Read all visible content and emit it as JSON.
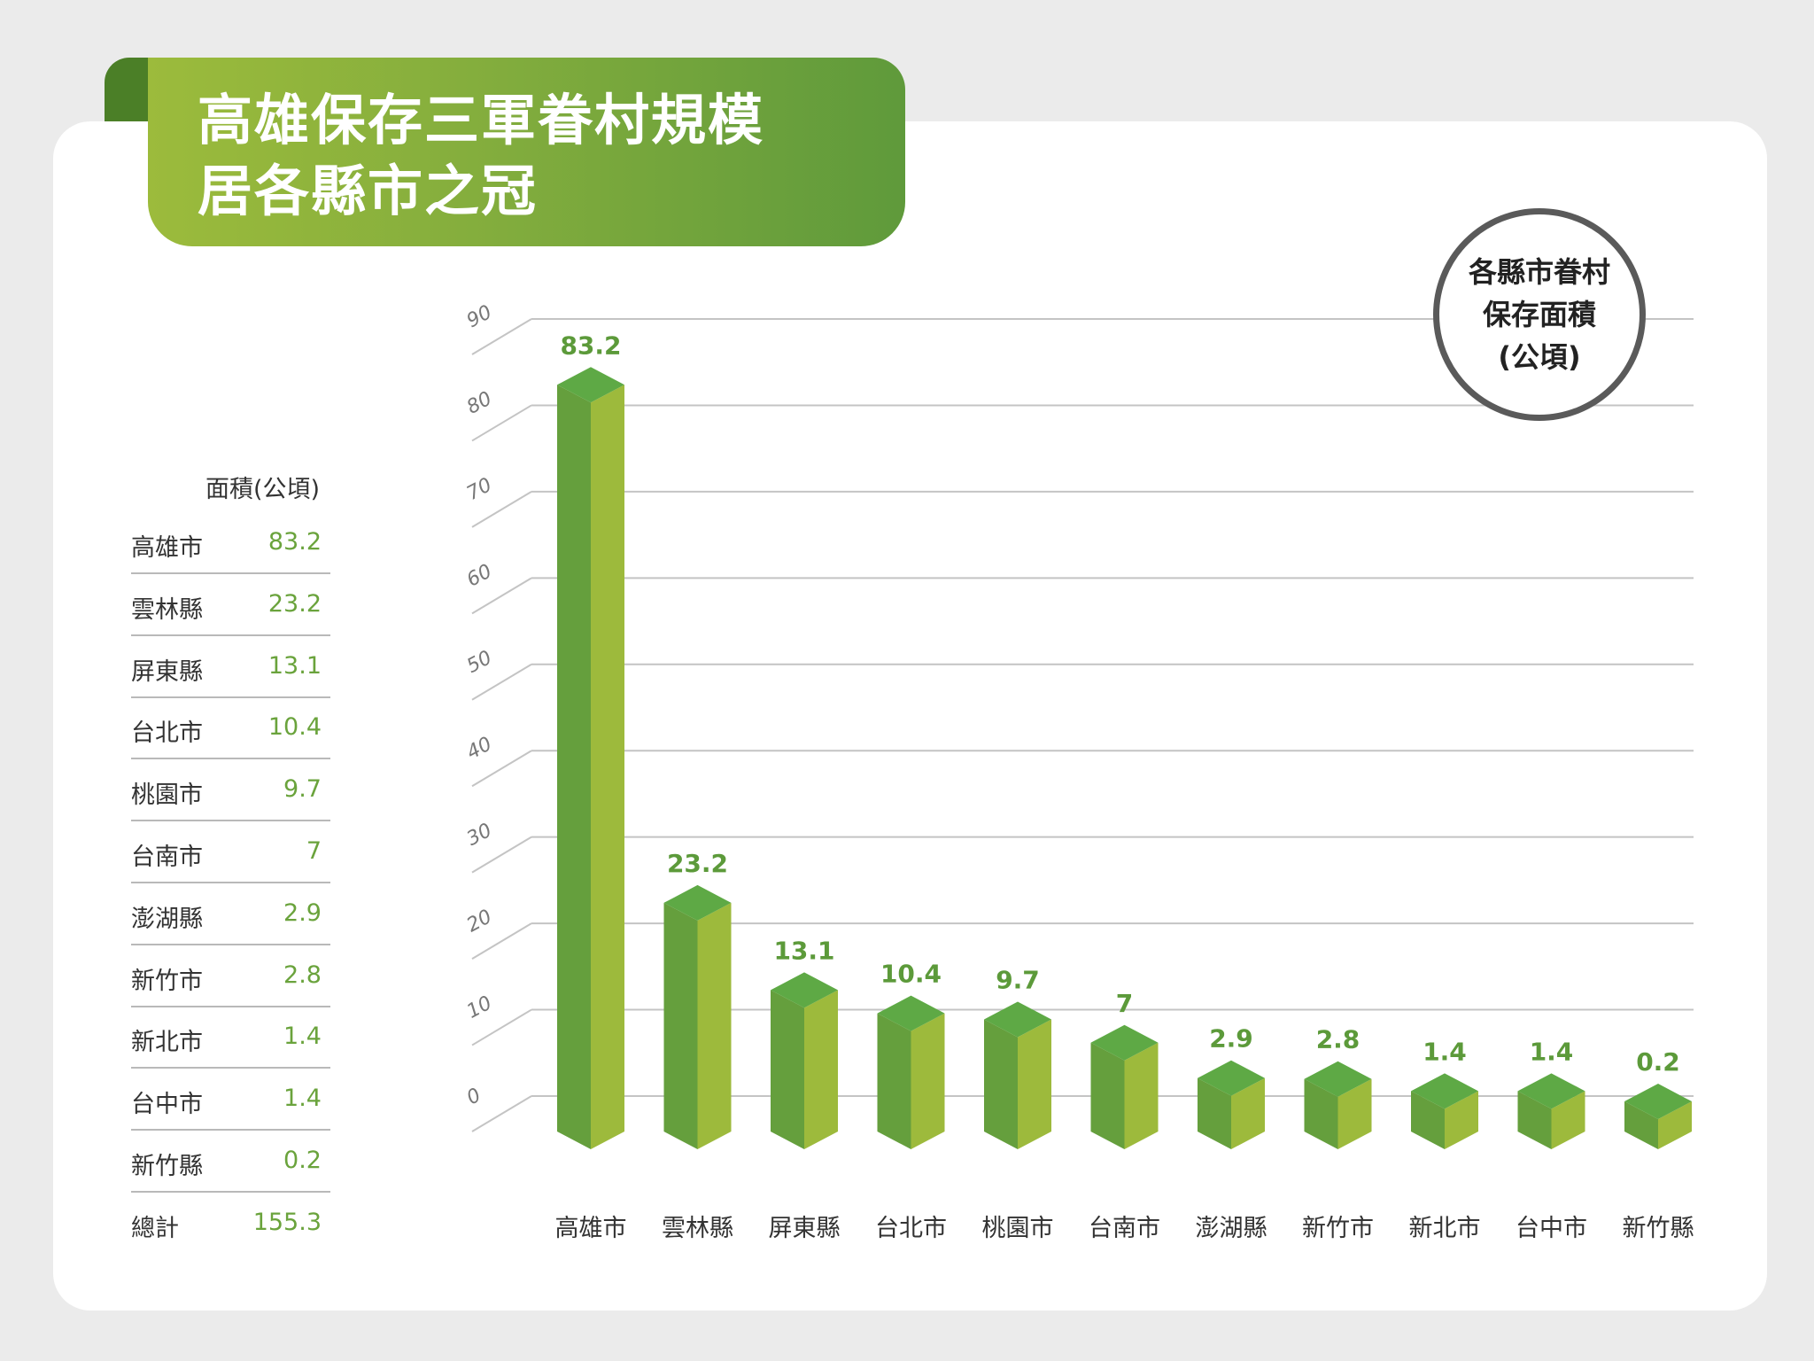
{
  "title": {
    "line1": "高雄保存三軍眷村規模",
    "line2": "居各縣市之冠"
  },
  "badge": {
    "line1": "各縣市眷村",
    "line2": "保存面積",
    "line3": "(公頃)"
  },
  "table": {
    "header": "面積(公頃)",
    "rows": [
      {
        "name": "高雄市",
        "value": "83.2"
      },
      {
        "name": "雲林縣",
        "value": "23.2"
      },
      {
        "name": "屏東縣",
        "value": "13.1"
      },
      {
        "name": "台北市",
        "value": "10.4"
      },
      {
        "name": "桃園市",
        "value": "9.7"
      },
      {
        "name": "台南市",
        "value": "7"
      },
      {
        "name": "澎湖縣",
        "value": "2.9"
      },
      {
        "name": "新竹市",
        "value": "2.8"
      },
      {
        "name": "新北市",
        "value": "1.4"
      },
      {
        "name": "台中市",
        "value": "1.4"
      },
      {
        "name": "新竹縣",
        "value": "0.2"
      }
    ],
    "total": {
      "name": "總計",
      "value": "155.3"
    }
  },
  "colors": {
    "front": "#659f3d",
    "side": "#9dba3c",
    "top": "#5ea945",
    "label": "#5c9a3a",
    "grid": "#c4c4c4"
  },
  "chart_data": {
    "type": "bar",
    "categories": [
      "高雄市",
      "雲林縣",
      "屏東縣",
      "台北市",
      "桃園市",
      "台南市",
      "澎湖縣",
      "新竹市",
      "新北市",
      "台中市",
      "新竹縣"
    ],
    "values": [
      83.2,
      23.2,
      13.1,
      10.4,
      9.7,
      7,
      2.9,
      2.8,
      1.4,
      1.4,
      0.2
    ],
    "yticks": [
      0,
      10,
      20,
      30,
      40,
      50,
      60,
      70,
      80,
      90
    ],
    "ylim": [
      0,
      90
    ],
    "grid": true,
    "bar_style": "3d-prism",
    "data_labels": [
      "83.2",
      "23.2",
      "13.1",
      "10.4",
      "9.7",
      "7",
      "2.9",
      "2.8",
      "1.4",
      "1.4",
      "0.2"
    ]
  }
}
